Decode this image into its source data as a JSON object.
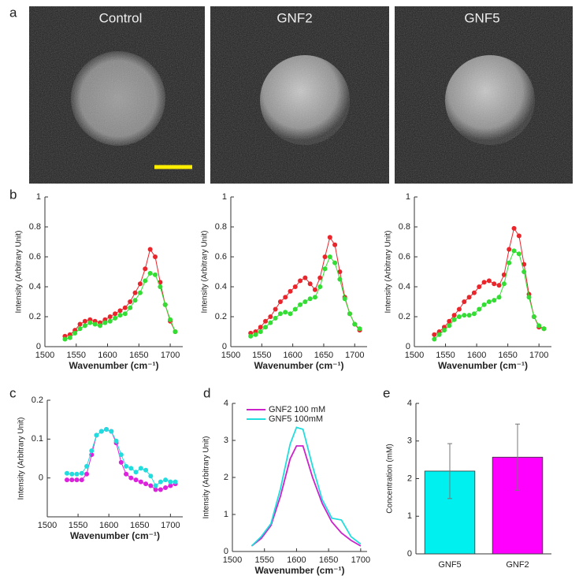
{
  "panel_labels": [
    "a",
    "b",
    "c",
    "d",
    "e"
  ],
  "images": [
    {
      "title": "Control"
    },
    {
      "title": "GNF2"
    },
    {
      "title": "GNF5"
    }
  ],
  "chart_data": [
    {
      "type": "line",
      "markers": true,
      "xlabel": "Wavenumber (cm⁻¹)",
      "ylabel": "Intensity (Arbitrary Unit)",
      "x": [
        1532,
        1540,
        1548,
        1556,
        1564,
        1572,
        1580,
        1588,
        1596,
        1604,
        1612,
        1620,
        1628,
        1636,
        1644,
        1652,
        1660,
        1668,
        1676,
        1684,
        1692,
        1700,
        1708
      ],
      "series": [
        {
          "color": "#e8262c",
          "values": [
            0.07,
            0.08,
            0.11,
            0.15,
            0.17,
            0.18,
            0.17,
            0.16,
            0.18,
            0.2,
            0.22,
            0.24,
            0.26,
            0.3,
            0.36,
            0.42,
            0.52,
            0.65,
            0.6,
            0.43,
            0.28,
            0.17,
            0.1
          ]
        },
        {
          "color": "#33dd33",
          "values": [
            0.05,
            0.06,
            0.09,
            0.12,
            0.14,
            0.16,
            0.15,
            0.14,
            0.16,
            0.17,
            0.19,
            0.21,
            0.22,
            0.26,
            0.31,
            0.36,
            0.44,
            0.49,
            0.48,
            0.4,
            0.28,
            0.18,
            0.1
          ]
        }
      ],
      "xlim": [
        1500,
        1720
      ],
      "xticks": [
        1500,
        1550,
        1600,
        1650,
        1700
      ],
      "ylim": [
        0,
        1
      ],
      "yticks": [
        0,
        0.2,
        0.4,
        0.6,
        0.8,
        1
      ]
    },
    {
      "type": "line",
      "markers": true,
      "xlabel": "Wavenumber (cm⁻¹)",
      "ylabel": "Intensity (Arbitrary Unit)",
      "x": [
        1532,
        1540,
        1548,
        1556,
        1564,
        1572,
        1580,
        1588,
        1596,
        1604,
        1612,
        1620,
        1628,
        1636,
        1644,
        1652,
        1660,
        1668,
        1676,
        1684,
        1692,
        1700,
        1708
      ],
      "series": [
        {
          "color": "#e8262c",
          "values": [
            0.09,
            0.1,
            0.13,
            0.17,
            0.2,
            0.25,
            0.3,
            0.33,
            0.37,
            0.4,
            0.44,
            0.46,
            0.42,
            0.38,
            0.46,
            0.6,
            0.73,
            0.68,
            0.5,
            0.33,
            0.22,
            0.15,
            0.11
          ]
        },
        {
          "color": "#33dd33",
          "values": [
            0.07,
            0.08,
            0.1,
            0.13,
            0.16,
            0.19,
            0.22,
            0.23,
            0.22,
            0.25,
            0.28,
            0.3,
            0.32,
            0.33,
            0.4,
            0.52,
            0.6,
            0.56,
            0.45,
            0.32,
            0.22,
            0.15,
            0.12
          ]
        }
      ],
      "xlim": [
        1500,
        1720
      ],
      "xticks": [
        1500,
        1550,
        1600,
        1650,
        1700
      ],
      "ylim": [
        0,
        1
      ],
      "yticks": [
        0,
        0.2,
        0.4,
        0.6,
        0.8,
        1
      ]
    },
    {
      "type": "line",
      "markers": true,
      "xlabel": "Wavenumber (cm⁻¹)",
      "ylabel": "Intensity (Arbitrary Unit)",
      "x": [
        1532,
        1540,
        1548,
        1556,
        1564,
        1572,
        1580,
        1588,
        1596,
        1604,
        1612,
        1620,
        1628,
        1636,
        1644,
        1652,
        1660,
        1668,
        1676,
        1684,
        1692,
        1700,
        1708
      ],
      "series": [
        {
          "color": "#e8262c",
          "values": [
            0.08,
            0.1,
            0.13,
            0.17,
            0.21,
            0.25,
            0.3,
            0.33,
            0.36,
            0.4,
            0.43,
            0.44,
            0.42,
            0.41,
            0.48,
            0.65,
            0.79,
            0.74,
            0.55,
            0.35,
            0.2,
            0.13,
            0.12
          ]
        },
        {
          "color": "#33dd33",
          "values": [
            0.05,
            0.08,
            0.11,
            0.14,
            0.18,
            0.2,
            0.21,
            0.21,
            0.22,
            0.25,
            0.28,
            0.3,
            0.31,
            0.33,
            0.42,
            0.56,
            0.64,
            0.62,
            0.5,
            0.33,
            0.2,
            0.14,
            0.12
          ]
        }
      ],
      "xlim": [
        1500,
        1720
      ],
      "xticks": [
        1500,
        1550,
        1600,
        1650,
        1700
      ],
      "ylim": [
        0,
        1
      ],
      "yticks": [
        0,
        0.2,
        0.4,
        0.6,
        0.8,
        1
      ]
    },
    {
      "type": "line",
      "markers": true,
      "xlabel": "Wavenumber (cm⁻¹)",
      "ylabel": "Intensity (Arbitrary Unit)",
      "x": [
        1532,
        1540,
        1548,
        1556,
        1564,
        1572,
        1580,
        1588,
        1596,
        1604,
        1612,
        1620,
        1628,
        1636,
        1644,
        1652,
        1660,
        1668,
        1676,
        1684,
        1692,
        1700,
        1708
      ],
      "series": [
        {
          "color": "#dd22dd",
          "values": [
            -0.005,
            -0.005,
            -0.005,
            -0.005,
            0.01,
            0.06,
            0.11,
            0.12,
            0.125,
            0.12,
            0.09,
            0.04,
            0.01,
            0.0,
            -0.005,
            -0.01,
            -0.015,
            -0.02,
            -0.03,
            -0.03,
            -0.025,
            -0.02,
            -0.015
          ]
        },
        {
          "color": "#22dddd",
          "values": [
            0.012,
            0.01,
            0.01,
            0.012,
            0.03,
            0.07,
            0.11,
            0.12,
            0.125,
            0.12,
            0.095,
            0.06,
            0.03,
            0.025,
            0.015,
            0.025,
            0.02,
            0.005,
            -0.02,
            -0.01,
            -0.005,
            -0.01,
            -0.01
          ]
        }
      ],
      "xlim": [
        1500,
        1720
      ],
      "xticks": [
        1500,
        1550,
        1600,
        1650,
        1700
      ],
      "ylim": [
        -0.1,
        0.2
      ],
      "yticks": [
        0,
        0.1,
        0.2
      ]
    },
    {
      "type": "line",
      "markers": false,
      "legend": "upper left",
      "xlabel": "Wavenumber (cm⁻¹)",
      "ylabel": "Intensity (Arbitrary Unit)",
      "x": [
        1530,
        1545,
        1560,
        1575,
        1590,
        1600,
        1610,
        1625,
        1640,
        1655,
        1670,
        1685,
        1700
      ],
      "series": [
        {
          "name": "GNF2 100 mM",
          "color": "#cc22cc",
          "values": [
            0.15,
            0.35,
            0.7,
            1.5,
            2.5,
            2.85,
            2.85,
            2.0,
            1.3,
            0.8,
            0.5,
            0.3,
            0.15
          ]
        },
        {
          "name": "GNF5 100mM",
          "color": "#22dddd",
          "values": [
            0.15,
            0.4,
            0.75,
            1.7,
            2.9,
            3.35,
            3.3,
            2.3,
            1.4,
            0.9,
            0.85,
            0.4,
            0.2
          ]
        }
      ],
      "xlim": [
        1500,
        1710
      ],
      "xticks": [
        1500,
        1550,
        1600,
        1650,
        1700
      ],
      "ylim": [
        0,
        4
      ],
      "yticks": [
        0,
        1,
        2,
        3,
        4
      ]
    },
    {
      "type": "bar",
      "ylabel": "Concentration (mM)",
      "categories": [
        "GNF5",
        "GNF2"
      ],
      "values": [
        2.2,
        2.57
      ],
      "errors": [
        0.73,
        0.88
      ],
      "colors": [
        "#00f0f0",
        "#ff00ff"
      ],
      "ylim": [
        0,
        4
      ],
      "yticks": [
        0,
        1,
        2,
        3,
        4
      ]
    }
  ]
}
